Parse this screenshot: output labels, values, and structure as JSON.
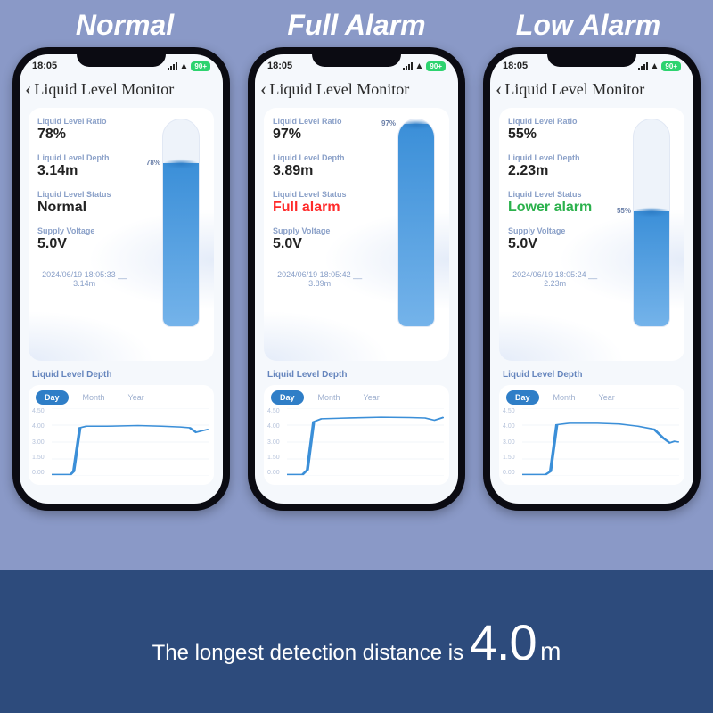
{
  "colors": {
    "page_bg": "#8a99c7",
    "footer_bg": "#2d4b7c",
    "white": "#ffffff",
    "accent": "#3b8fd8",
    "status_red": "#ff2a2a",
    "status_green": "#2bb14c",
    "label_grey": "#8aa0c8"
  },
  "header_labels": [
    "Normal",
    "Full Alarm",
    "Low Alarm"
  ],
  "status_bar": {
    "time": "18:05",
    "battery_label": "90+"
  },
  "nav": {
    "title": "Liquid Level Monitor"
  },
  "field_labels": {
    "ratio": "Liquid Level Ratio",
    "depth": "Liquid Level Depth",
    "status": "Liquid Level Status",
    "voltage": "Supply Voltage"
  },
  "phones": [
    {
      "ratio": "78%",
      "depth": "3.14m",
      "status": "Normal",
      "status_class": "",
      "voltage": "5.0V",
      "fill_pct": 78,
      "fill_label": "78%",
      "timestamp": "2024/06/19 18:05:33 __ 3.14m"
    },
    {
      "ratio": "97%",
      "depth": "3.89m",
      "status": "Full alarm",
      "status_class": "red",
      "voltage": "5.0V",
      "fill_pct": 97,
      "fill_label": "97%",
      "timestamp": "2024/06/19 18:05:42 __ 3.89m"
    },
    {
      "ratio": "55%",
      "depth": "2.23m",
      "status": "Lower alarm",
      "status_class": "green",
      "voltage": "5.0V",
      "fill_pct": 55,
      "fill_label": "55%",
      "timestamp": "2024/06/19 18:05:24 __ 2.23m"
    }
  ],
  "chart": {
    "section_title": "Liquid Level Depth",
    "tabs": [
      "Day",
      "Month",
      "Year"
    ],
    "active_tab": 0,
    "y_ticks": [
      "4.50",
      "4.00",
      "3.00",
      "1.50",
      "0.00"
    ],
    "ylim": [
      0,
      4.5
    ],
    "line_color": "#3b8fd8",
    "grid_color": "#eef2f9",
    "bg_color": "#ffffff",
    "series": [
      {
        "points": [
          [
            0,
            0.1
          ],
          [
            12,
            0.1
          ],
          [
            14,
            0.3
          ],
          [
            18,
            3.2
          ],
          [
            22,
            3.3
          ],
          [
            35,
            3.3
          ],
          [
            55,
            3.35
          ],
          [
            70,
            3.3
          ],
          [
            82,
            3.25
          ],
          [
            88,
            3.2
          ],
          [
            92,
            2.9
          ],
          [
            96,
            3.0
          ],
          [
            100,
            3.1
          ]
        ]
      },
      {
        "points": [
          [
            0,
            0.1
          ],
          [
            10,
            0.1
          ],
          [
            13,
            0.4
          ],
          [
            17,
            3.6
          ],
          [
            22,
            3.8
          ],
          [
            40,
            3.85
          ],
          [
            60,
            3.9
          ],
          [
            78,
            3.88
          ],
          [
            88,
            3.85
          ],
          [
            94,
            3.7
          ],
          [
            97,
            3.8
          ],
          [
            100,
            3.9
          ]
        ]
      },
      {
        "points": [
          [
            0,
            0.1
          ],
          [
            15,
            0.1
          ],
          [
            18,
            0.3
          ],
          [
            22,
            3.4
          ],
          [
            30,
            3.5
          ],
          [
            48,
            3.5
          ],
          [
            62,
            3.45
          ],
          [
            74,
            3.3
          ],
          [
            84,
            3.1
          ],
          [
            90,
            2.5
          ],
          [
            94,
            2.2
          ],
          [
            97,
            2.3
          ],
          [
            100,
            2.25
          ]
        ]
      }
    ]
  },
  "footer": {
    "prefix": "The longest detection distance is ",
    "value": "4.0",
    "unit": "m"
  }
}
